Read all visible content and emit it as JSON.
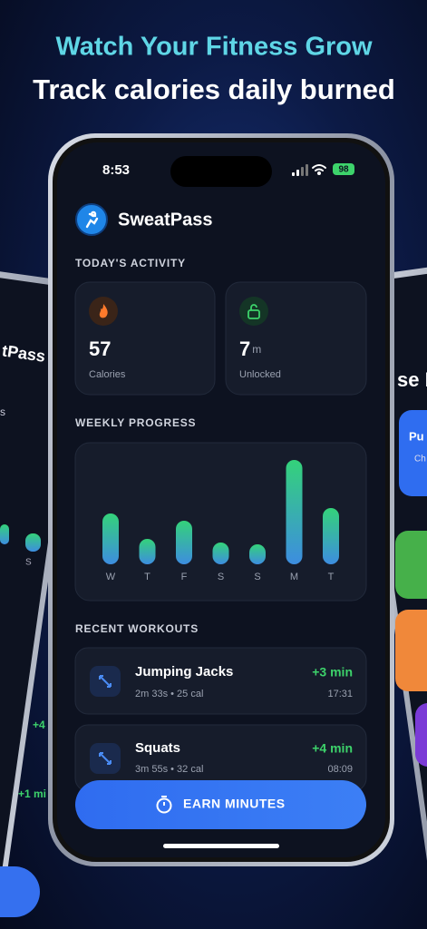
{
  "header": {
    "title": "Watch Your Fitness Grow",
    "subtitle": "Track calories daily burned"
  },
  "status_bar": {
    "time": "8:53",
    "battery": 98
  },
  "app": {
    "name": "SweatPass"
  },
  "today": {
    "heading": "TODAY'S ACTIVITY",
    "cards": [
      {
        "value": 57,
        "label": "Calories"
      },
      {
        "value": 7,
        "unit": "m",
        "label": "Unlocked"
      }
    ]
  },
  "weekly": {
    "heading": "WEEKLY PROGRESS",
    "days": [
      "W",
      "T",
      "F",
      "S",
      "S",
      "M",
      "T"
    ],
    "values": [
      56,
      28,
      48,
      24,
      22,
      115,
      62
    ]
  },
  "recent": {
    "heading": "RECENT WORKOUTS",
    "workouts": [
      {
        "name": "Jumping Jacks",
        "detail": "2m 33s • 25 cal",
        "reward": "+3 min",
        "time": "17:31"
      },
      {
        "name": "Squats",
        "detail": "3m 55s • 32 cal",
        "reward": "+4 min",
        "time": "08:09"
      }
    ]
  },
  "button": {
    "label": "EARN MINUTES"
  },
  "left_phone": {
    "texts": [
      "tPass",
      "s",
      "S",
      "+4",
      "+1 mi"
    ]
  },
  "right_phone": {
    "texts": [
      "se E",
      "Pu",
      "Ch"
    ]
  }
}
